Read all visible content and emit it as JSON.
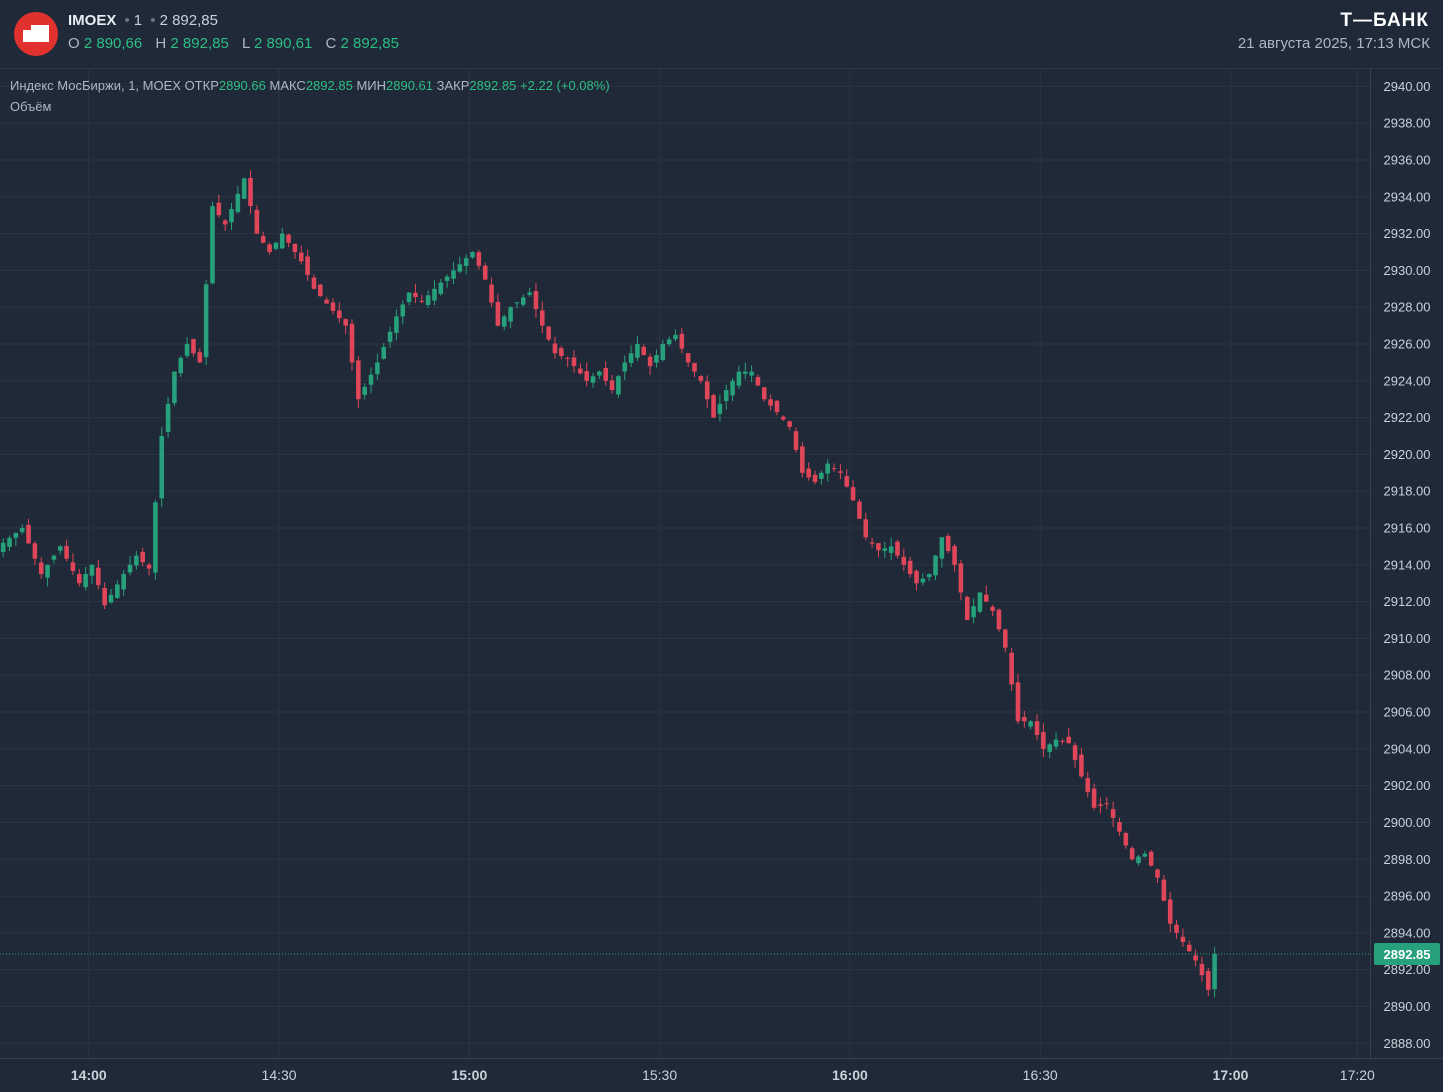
{
  "header": {
    "symbol": "IMOEX",
    "interval": "1",
    "last_price": "2 892,85",
    "ohlc": {
      "o_label": "O",
      "o_value": "2 890,66",
      "h_label": "H",
      "h_value": "2 892,85",
      "l_label": "L",
      "l_value": "2 890,61",
      "c_label": "C",
      "c_value": "2 892,85"
    },
    "brand": "Т—БАНК",
    "datestamp": "21 августа 2025, 17:13 МСК"
  },
  "legend": {
    "name": "Индекс МосБиржи, 1, MOEX",
    "open_label": "ОТКР",
    "open_value": "2890.66",
    "high_label": "МАКС",
    "high_value": "2892.85",
    "low_label": "МИН",
    "low_value": "2890.61",
    "close_label": "ЗАКР",
    "close_value": "2892.85",
    "change": "+2.22 (+0.08%)",
    "volume_label": "Объём"
  },
  "colors": {
    "up": "#26a17b",
    "down": "#e0465a",
    "background": "#1f2937",
    "grid": "#2b3544",
    "last_price_tag": "#26a17b"
  },
  "chart_data": {
    "type": "candlestick",
    "x_axis": {
      "ticks": [
        "14:00",
        "14:30",
        "15:00",
        "15:30",
        "16:00",
        "16:30",
        "17:00",
        "17:20"
      ],
      "range": [
        "13:46",
        "17:22"
      ]
    },
    "y_axis": {
      "ticks": [
        "2888.00",
        "2890.00",
        "2892.00",
        "2894.00",
        "2896.00",
        "2898.00",
        "2900.00",
        "2902.00",
        "2904.00",
        "2906.00",
        "2908.00",
        "2910.00",
        "2912.00",
        "2914.00",
        "2916.00",
        "2918.00",
        "2920.00",
        "2922.00",
        "2924.00",
        "2926.00",
        "2928.00",
        "2930.00",
        "2932.00",
        "2934.00",
        "2936.00",
        "2938.00",
        "2940.00"
      ],
      "range": [
        2887.2,
        2941.0
      ]
    },
    "last_price_label": "2892.85",
    "last_price": 2892.85,
    "grid": true,
    "series": [
      {
        "keypoints": [
          [
            "13:46",
            2915.2
          ],
          [
            "13:49",
            2916.0
          ],
          [
            "13:52",
            2913.5
          ],
          [
            "13:55",
            2915.0
          ],
          [
            "13:58",
            2913.0
          ],
          [
            "14:00",
            2914.0
          ],
          [
            "14:02",
            2911.8
          ],
          [
            "14:05",
            2913.5
          ],
          [
            "14:07",
            2914.5
          ],
          [
            "14:09",
            2913.8
          ],
          [
            "14:11",
            2921.0
          ],
          [
            "14:13",
            2924.5
          ],
          [
            "14:15",
            2926.0
          ],
          [
            "14:17",
            2925.0
          ],
          [
            "14:19",
            2933.5
          ],
          [
            "14:21",
            2932.5
          ],
          [
            "14:24",
            2935.0
          ],
          [
            "14:26",
            2932.0
          ],
          [
            "14:28",
            2931.0
          ],
          [
            "14:30",
            2932.0
          ],
          [
            "14:33",
            2930.5
          ],
          [
            "14:35",
            2929.0
          ],
          [
            "14:37",
            2928.2
          ],
          [
            "14:40",
            2927.0
          ],
          [
            "14:42",
            2923.0
          ],
          [
            "14:45",
            2925.0
          ],
          [
            "14:48",
            2927.5
          ],
          [
            "14:50",
            2928.8
          ],
          [
            "14:52",
            2928.3
          ],
          [
            "14:54",
            2929.0
          ],
          [
            "14:57",
            2930.0
          ],
          [
            "15:00",
            2931.0
          ],
          [
            "15:02",
            2929.5
          ],
          [
            "15:04",
            2927.0
          ],
          [
            "15:06",
            2928.0
          ],
          [
            "15:09",
            2928.8
          ],
          [
            "15:11",
            2927.0
          ],
          [
            "15:13",
            2925.5
          ],
          [
            "15:15",
            2925.2
          ],
          [
            "15:18",
            2924.0
          ],
          [
            "15:20",
            2924.5
          ],
          [
            "15:22",
            2923.5
          ],
          [
            "15:24",
            2925.0
          ],
          [
            "15:26",
            2926.0
          ],
          [
            "15:28",
            2924.8
          ],
          [
            "15:30",
            2926.0
          ],
          [
            "15:32",
            2926.5
          ],
          [
            "15:34",
            2925.0
          ],
          [
            "15:36",
            2924.0
          ],
          [
            "15:38",
            2922.0
          ],
          [
            "15:40",
            2923.5
          ],
          [
            "15:42",
            2924.5
          ],
          [
            "15:44",
            2924.5
          ],
          [
            "15:46",
            2923.0
          ],
          [
            "15:48",
            2922.3
          ],
          [
            "15:50",
            2921.5
          ],
          [
            "15:52",
            2919.0
          ],
          [
            "15:54",
            2918.5
          ],
          [
            "15:56",
            2919.5
          ],
          [
            "15:58",
            2919.0
          ],
          [
            "16:00",
            2917.5
          ],
          [
            "16:02",
            2915.5
          ],
          [
            "16:04",
            2914.8
          ],
          [
            "16:06",
            2915.0
          ],
          [
            "16:08",
            2914.0
          ],
          [
            "16:10",
            2913.0
          ],
          [
            "16:12",
            2913.5
          ],
          [
            "16:14",
            2915.5
          ],
          [
            "16:16",
            2914.0
          ],
          [
            "16:18",
            2911.0
          ],
          [
            "16:20",
            2912.5
          ],
          [
            "16:22",
            2911.5
          ],
          [
            "16:24",
            2909.5
          ],
          [
            "16:26",
            2905.5
          ],
          [
            "16:28",
            2905.5
          ],
          [
            "16:30",
            2904.0
          ],
          [
            "16:32",
            2904.5
          ],
          [
            "16:34",
            2904.3
          ],
          [
            "16:36",
            2902.5
          ],
          [
            "16:38",
            2900.8
          ],
          [
            "16:40",
            2901.0
          ],
          [
            "16:42",
            2899.5
          ],
          [
            "16:44",
            2898.0
          ],
          [
            "16:46",
            2898.3
          ],
          [
            "16:48",
            2897.0
          ],
          [
            "16:50",
            2894.5
          ],
          [
            "16:52",
            2893.5
          ],
          [
            "16:54",
            2892.5
          ],
          [
            "16:56",
            2890.9
          ],
          [
            "16:57",
            2892.85
          ]
        ]
      }
    ]
  }
}
